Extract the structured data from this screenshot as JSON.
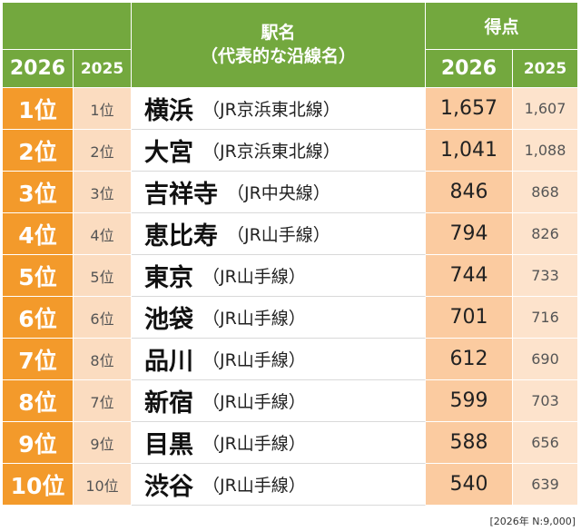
{
  "header": {
    "station_title": "駅名",
    "station_subtitle": "（代表的な沿線名）",
    "score_title": "得点",
    "year_2026": "2026",
    "year_2025": "2025"
  },
  "rows": [
    {
      "rank2026": "1位",
      "rank2025": "1位",
      "station": "横浜",
      "line": "（JR京浜東北線）",
      "score2026": "1,657",
      "score2025": "1,607"
    },
    {
      "rank2026": "2位",
      "rank2025": "2位",
      "station": "大宮",
      "line": "（JR京浜東北線）",
      "score2026": "1,041",
      "score2025": "1,088"
    },
    {
      "rank2026": "3位",
      "rank2025": "3位",
      "station": "吉祥寺",
      "line": "（JR中央線）",
      "score2026": "846",
      "score2025": "868"
    },
    {
      "rank2026": "4位",
      "rank2025": "4位",
      "station": "恵比寿",
      "line": "（JR山手線）",
      "score2026": "794",
      "score2025": "826"
    },
    {
      "rank2026": "5位",
      "rank2025": "5位",
      "station": "東京",
      "line": "（JR山手線）",
      "score2026": "744",
      "score2025": "733"
    },
    {
      "rank2026": "6位",
      "rank2025": "6位",
      "station": "池袋",
      "line": "（JR山手線）",
      "score2026": "701",
      "score2025": "716"
    },
    {
      "rank2026": "7位",
      "rank2025": "8位",
      "station": "品川",
      "line": "（JR山手線）",
      "score2026": "612",
      "score2025": "690"
    },
    {
      "rank2026": "8位",
      "rank2025": "7位",
      "station": "新宿",
      "line": "（JR山手線）",
      "score2026": "599",
      "score2025": "703"
    },
    {
      "rank2026": "9位",
      "rank2025": "9位",
      "station": "目黒",
      "line": "（JR山手線）",
      "score2026": "588",
      "score2025": "656"
    },
    {
      "rank2026": "10位",
      "rank2025": "10位",
      "station": "渋谷",
      "line": "（JR山手線）",
      "score2026": "540",
      "score2025": "639"
    }
  ],
  "footnote": "[2026年 N:9,000]",
  "colors": {
    "header_green": "#73a83e",
    "rank_orange": "#f39a2b",
    "score_peach": "#fbcba0"
  }
}
